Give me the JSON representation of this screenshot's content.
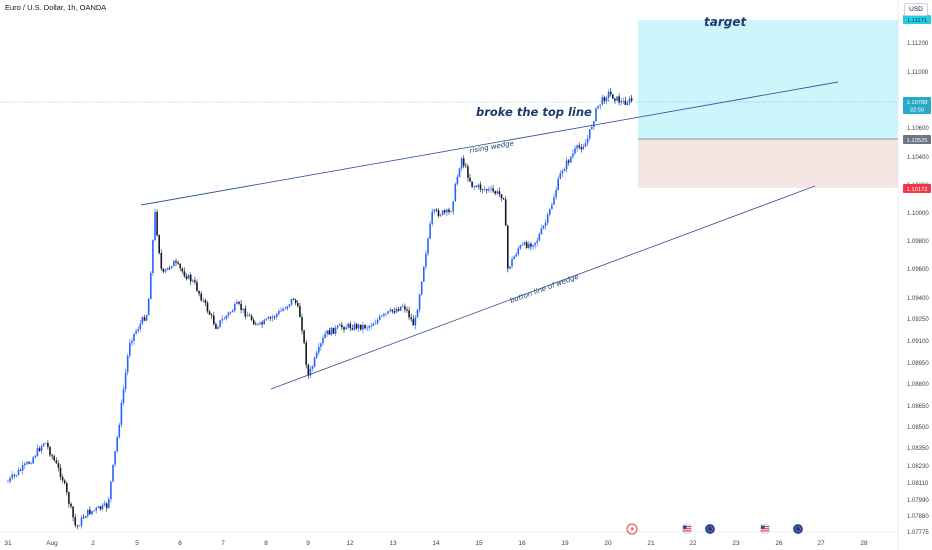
{
  "header": {
    "symbol_title": "Euro / U.S. Dollar, 1h, OANDA",
    "currency": "USD"
  },
  "annotations": {
    "target": "target",
    "broke_top_line": "broke the top line",
    "rising_wedge": "rising wedge",
    "bottom_line": "button line of wedge"
  },
  "price_tags": {
    "target_price": "1.11171",
    "last_price": "1.10788",
    "countdown": "32:50",
    "entry_price": "1.10525",
    "stop_price": "1.10172"
  },
  "colors": {
    "up": "#2962ff",
    "down": "#131722",
    "target_zone": "#ccf6fb",
    "stop_zone": "#f3e6e3",
    "last_price": "#28a9c8",
    "entry": "#707783",
    "stop": "#f23645",
    "target_tag": "#1fd0e6",
    "trendline": "#3a5a9c"
  },
  "icons": [
    "lightning-event-icon",
    "us-flag-icon",
    "eu-flag-icon",
    "us-flag-icon",
    "eu-flag-icon"
  ],
  "chart_data": {
    "type": "candlestick",
    "title": "Euro / U.S. Dollar, 1h, OANDA",
    "y_unit": "USD",
    "ylim": [
      1.077,
      1.114
    ],
    "y_ticks": [
      "1.11200",
      "1.11000",
      "1.10800",
      "1.10600",
      "1.10400",
      "1.10200",
      "1.10000",
      "1.09800",
      "1.09600",
      "1.09400",
      "1.09250",
      "1.09100",
      "1.08950",
      "1.08800",
      "1.08650",
      "1.08500",
      "1.08350",
      "1.08230",
      "1.08110",
      "1.07990",
      "1.07880",
      "1.07775"
    ],
    "x_ticks": [
      "31",
      "Aug",
      "2",
      "5",
      "6",
      "7",
      "8",
      "9",
      "12",
      "13",
      "14",
      "15",
      "16",
      "19",
      "20",
      "21",
      "22",
      "23",
      "26",
      "27",
      "28"
    ],
    "close_path": [
      {
        "date": "2024-07-31 00:00",
        "close": 1.0812
      },
      {
        "date": "2024-07-31 12:00",
        "close": 1.0826
      },
      {
        "date": "2024-07-31 20:00",
        "close": 1.084
      },
      {
        "date": "2024-08-01 06:00",
        "close": 1.0815
      },
      {
        "date": "2024-08-01 14:00",
        "close": 1.078
      },
      {
        "date": "2024-08-01 20:00",
        "close": 1.079
      },
      {
        "date": "2024-08-02 08:00",
        "close": 1.0795
      },
      {
        "date": "2024-08-02 14:00",
        "close": 1.085
      },
      {
        "date": "2024-08-02 20:00",
        "close": 1.091
      },
      {
        "date": "2024-08-05 06:00",
        "close": 1.093
      },
      {
        "date": "2024-08-05 10:00",
        "close": 1.1
      },
      {
        "date": "2024-08-05 14:00",
        "close": 1.0955
      },
      {
        "date": "2024-08-05 20:00",
        "close": 1.0965
      },
      {
        "date": "2024-08-06 08:00",
        "close": 1.095
      },
      {
        "date": "2024-08-06 20:00",
        "close": 1.092
      },
      {
        "date": "2024-08-07 08:00",
        "close": 1.0935
      },
      {
        "date": "2024-08-07 20:00",
        "close": 1.092
      },
      {
        "date": "2024-08-08 08:00",
        "close": 1.093
      },
      {
        "date": "2024-08-08 16:00",
        "close": 1.094
      },
      {
        "date": "2024-08-08 20:00",
        "close": 1.0925
      },
      {
        "date": "2024-08-09 00:00",
        "close": 1.0885
      },
      {
        "date": "2024-08-09 10:00",
        "close": 1.0915
      },
      {
        "date": "2024-08-09 20:00",
        "close": 1.092
      },
      {
        "date": "2024-08-12 10:00",
        "close": 1.092
      },
      {
        "date": "2024-08-12 20:00",
        "close": 1.0928
      },
      {
        "date": "2024-08-13 06:00",
        "close": 1.0935
      },
      {
        "date": "2024-08-13 12:00",
        "close": 1.092
      },
      {
        "date": "2024-08-13 18:00",
        "close": 1.097
      },
      {
        "date": "2024-08-13 22:00",
        "close": 1.1
      },
      {
        "date": "2024-08-14 08:00",
        "close": 1.1
      },
      {
        "date": "2024-08-14 14:00",
        "close": 1.104
      },
      {
        "date": "2024-08-14 20:00",
        "close": 1.102
      },
      {
        "date": "2024-08-15 08:00",
        "close": 1.1015
      },
      {
        "date": "2024-08-15 14:00",
        "close": 1.1012
      },
      {
        "date": "2024-08-15 16:00",
        "close": 1.096
      },
      {
        "date": "2024-08-15 22:00",
        "close": 1.0975
      },
      {
        "date": "2024-08-16 08:00",
        "close": 1.098
      },
      {
        "date": "2024-08-16 14:00",
        "close": 1.0995
      },
      {
        "date": "2024-08-16 22:00",
        "close": 1.103
      },
      {
        "date": "2024-08-19 06:00",
        "close": 1.1045
      },
      {
        "date": "2024-08-19 12:00",
        "close": 1.105
      },
      {
        "date": "2024-08-19 18:00",
        "close": 1.1075
      },
      {
        "date": "2024-08-20 00:00",
        "close": 1.1085
      },
      {
        "date": "2024-08-20 08:00",
        "close": 1.1078
      },
      {
        "date": "2024-08-20 14:00",
        "close": 1.108
      }
    ],
    "drawings": {
      "rising_wedge_upper": [
        {
          "date": "2024-08-05 02:00",
          "price": 1.1005
        },
        {
          "date": "2024-08-27 08:00",
          "price": 1.1085
        }
      ],
      "rising_wedge_lower": [
        {
          "date": "2024-08-08 04:00",
          "price": 1.0878
        },
        {
          "date": "2024-08-26 22:00",
          "price": 1.1018
        }
      ],
      "target_zone": [
        1.10525,
        1.11171
      ],
      "stop_zone": [
        1.10172,
        1.10525
      ]
    }
  }
}
